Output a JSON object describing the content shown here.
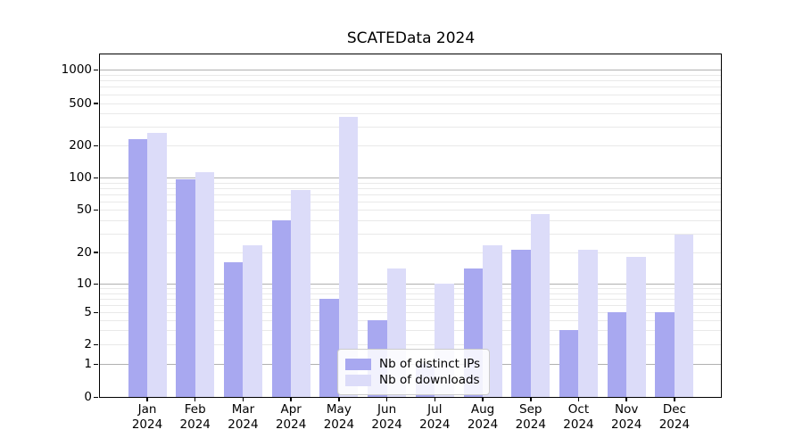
{
  "title": "SCATEData 2024",
  "chart_data": {
    "type": "bar",
    "title": "SCATEData 2024",
    "x_categories": [
      "Jan 2024",
      "Feb 2024",
      "Mar 2024",
      "Apr 2024",
      "May 2024",
      "Jun 2024",
      "Jul 2024",
      "Aug 2024",
      "Sep 2024",
      "Oct 2024",
      "Nov 2024",
      "Dec 2024"
    ],
    "months": [
      "Jan",
      "Feb",
      "Mar",
      "Apr",
      "May",
      "Jun",
      "Jul",
      "Aug",
      "Sep",
      "Oct",
      "Nov",
      "Dec"
    ],
    "year": "2024",
    "series": [
      {
        "name": "Nb of distinct IPs",
        "color": "#a8a8f0",
        "values": [
          230,
          97,
          16,
          40,
          7,
          4,
          1,
          14,
          21,
          3,
          5,
          5
        ]
      },
      {
        "name": "Nb of downloads",
        "color": "#dcdcf9",
        "values": [
          263,
          112,
          23,
          77,
          370,
          14,
          10,
          23,
          45,
          21,
          18,
          29
        ]
      }
    ],
    "y_ticks": [
      0,
      1,
      2,
      5,
      10,
      20,
      50,
      100,
      200,
      500,
      1000
    ],
    "y_scale": "log-like (linear below 1, logarithmic above)",
    "ylim": [
      0,
      1390
    ],
    "grid": "horizontal, major lines at 1/10/100/1000, faint minor lines per decade",
    "legend_position": "lower center"
  },
  "colors": {
    "bar_distinct_ips": "#a8a8f0",
    "bar_downloads": "#dcdcf9",
    "grid_major": "#b0b0b0",
    "grid_minor": "#e9e9e9",
    "axis": "#000000",
    "legend_border": "#cccccc",
    "legend_background": "rgba(255,255,255,0.85)"
  }
}
